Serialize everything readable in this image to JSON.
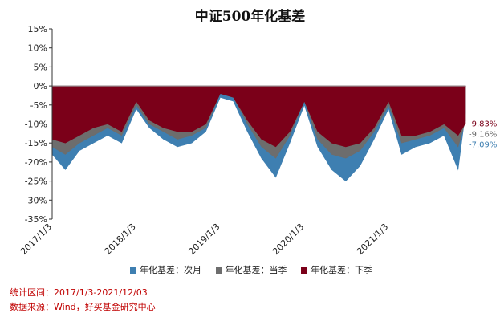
{
  "title": "中证500年化基差",
  "footnotes": {
    "period": "统计区间：2017/1/3-2021/12/03",
    "source": "数据来源：Wind，好买基金研究中心"
  },
  "colors": {
    "next_month": "#3e7fb1",
    "current_quarter": "#6d6d6d",
    "next_quarter": "#7b0019",
    "zero_line": "#9a9a9a"
  },
  "chart_data": {
    "type": "area",
    "title": "中证500年化基差",
    "xlabel": "",
    "ylabel": "",
    "ylim": [
      -35,
      15
    ],
    "y_ticks": [
      15,
      10,
      5,
      0,
      -5,
      -10,
      -15,
      -20,
      -25,
      -30,
      -35
    ],
    "y_tick_labels": [
      "15%",
      "10%",
      "5%",
      "0%",
      "-5%",
      "-10%",
      "-15%",
      "-20%",
      "-25%",
      "-30%",
      "-35%"
    ],
    "x_tick_labels": [
      "2017/1/3",
      "2018/1/3",
      "2019/1/3",
      "2020/1/3",
      "2021/1/3"
    ],
    "x_range": [
      "2017/1/3",
      "2021/12/03"
    ],
    "legend_position": "bottom",
    "grid": false,
    "x": [
      "2017/1/3",
      "2017/3/1",
      "2017/5/1",
      "2017/7/1",
      "2017/9/1",
      "2017/11/1",
      "2018/1/3",
      "2018/3/1",
      "2018/5/1",
      "2018/7/1",
      "2018/9/1",
      "2018/11/1",
      "2019/1/3",
      "2019/3/1",
      "2019/5/1",
      "2019/7/1",
      "2019/9/1",
      "2019/11/1",
      "2020/1/3",
      "2020/3/1",
      "2020/5/1",
      "2020/7/1",
      "2020/9/1",
      "2020/11/1",
      "2021/1/3",
      "2021/3/1",
      "2021/5/1",
      "2021/7/1",
      "2021/9/1",
      "2021/11/1",
      "2021/12/03"
    ],
    "series": [
      {
        "name": "年化基差：次月",
        "values": [
          -18,
          -22,
          -17,
          -15,
          -13,
          -15,
          -6,
          -11,
          -14,
          -16,
          -15,
          -12,
          -3,
          -4,
          -12,
          -19,
          -24,
          -15,
          -5,
          -16,
          -22,
          -25,
          -21,
          -14,
          -6,
          -18,
          -16,
          -15,
          -13,
          -22,
          -7.09
        ]
      },
      {
        "name": "年化基差：当季",
        "values": [
          -16,
          -18,
          -15,
          -13,
          -11,
          -13,
          -5,
          -10,
          -12,
          -14,
          -13,
          -11,
          -2,
          -3,
          -10,
          -16,
          -19,
          -13,
          -4,
          -14,
          -18,
          -19,
          -17,
          -12,
          -5,
          -15,
          -14,
          -13,
          -11,
          -16,
          -9.16
        ]
      },
      {
        "name": "年化基差：下季",
        "values": [
          -14,
          -15,
          -13,
          -11,
          -10,
          -12,
          -4,
          -9,
          -11,
          -12,
          -12,
          -10,
          -2,
          -3,
          -9,
          -14,
          -16,
          -12,
          -4,
          -12,
          -15,
          -16,
          -15,
          -11,
          -4,
          -13,
          -13,
          -12,
          -10,
          -13,
          -9.83
        ]
      }
    ],
    "end_labels": [
      "-9.83%",
      "-9.16%",
      "-7.09%"
    ]
  }
}
